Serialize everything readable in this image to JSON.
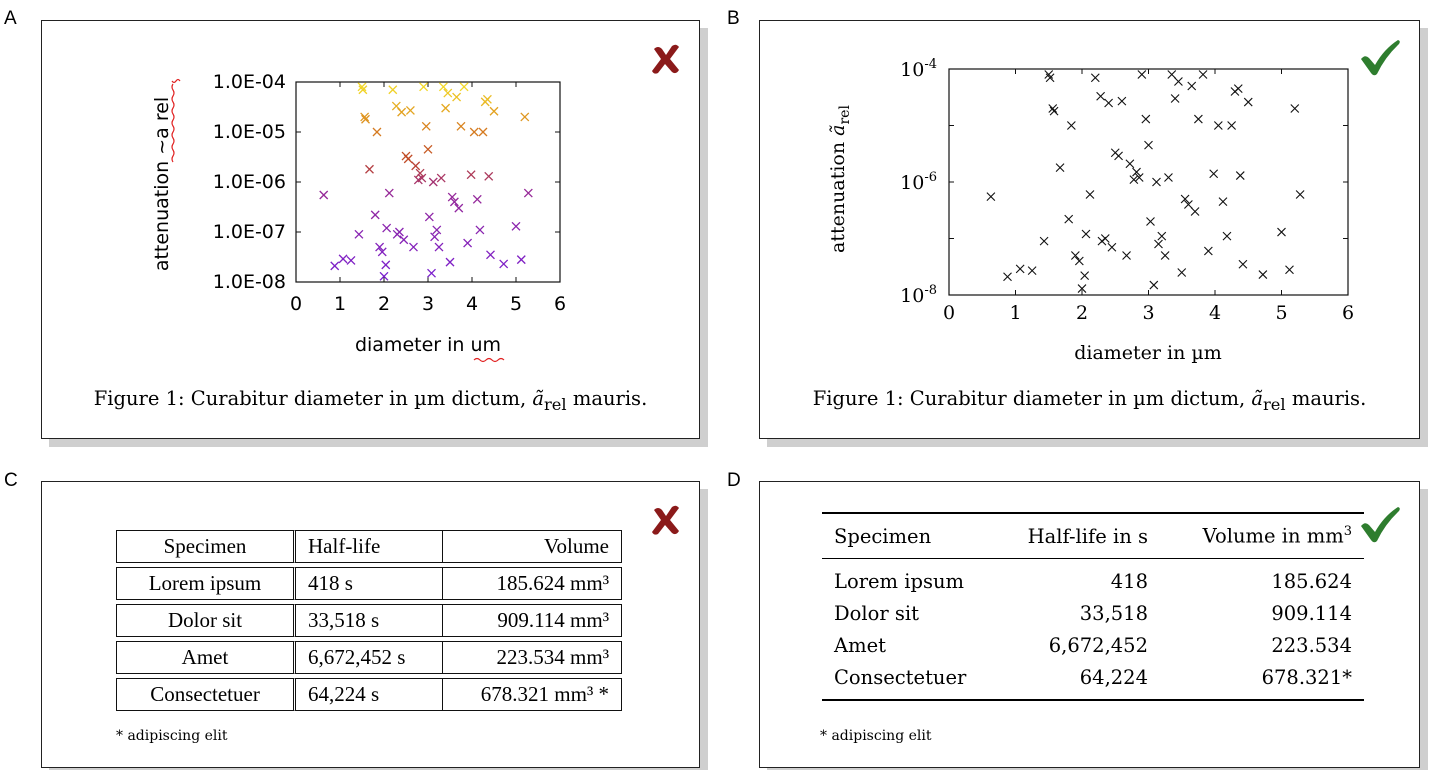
{
  "labels": {
    "a": "A",
    "b": "B",
    "c": "C",
    "d": "D"
  },
  "colors": {
    "bad_mark": "#8b1a1a",
    "good_mark": "#2e7d2e",
    "shadow": "#cfcfcf"
  },
  "icons": {
    "bad": "cross-mark-icon",
    "good": "check-mark-icon"
  },
  "panel_a": {
    "ylabel": "attenuation ~a rel",
    "xlabel": "diameter in um",
    "yticks": [
      "1.0E-04",
      "1.0E-05",
      "1.0E-06",
      "1.0E-07",
      "1.0E-08"
    ],
    "xticks": [
      "0",
      "1",
      "2",
      "3",
      "4",
      "5",
      "6"
    ],
    "caption": "Figure 1: Curabitur diameter in µm dictum, ã_rel mauris."
  },
  "panel_b": {
    "ylabel": "attenuation ã_rel",
    "xlabel": "diameter in µm",
    "yticks": [
      "10^-4",
      "10^-6",
      "10^-8"
    ],
    "xticks": [
      "0",
      "1",
      "2",
      "3",
      "4",
      "5",
      "6"
    ],
    "caption": "Figure 1: Curabitur diameter in µm dictum, ã_rel mauris."
  },
  "chart_data": [
    {
      "type": "scatter",
      "title": "",
      "xlabel": "diameter in um",
      "ylabel": "attenuation ~a rel",
      "xlim": [
        0,
        6
      ],
      "ylim": [
        1e-08,
        0.0001
      ],
      "yscale": "log",
      "grid": false,
      "color_by_y": "yellow (high) to purple (low)",
      "points": [
        [
          0.63,
          5.5e-07
        ],
        [
          0.88,
          2.1e-08
        ],
        [
          1.07,
          2.9e-08
        ],
        [
          1.25,
          2.7e-08
        ],
        [
          1.43,
          9e-08
        ],
        [
          1.5,
          8e-05
        ],
        [
          1.52,
          7e-05
        ],
        [
          1.56,
          2e-05
        ],
        [
          1.58,
          1.8e-05
        ],
        [
          1.67,
          1.8e-06
        ],
        [
          1.8,
          2.2e-07
        ],
        [
          1.84,
          1e-05
        ],
        [
          1.9,
          5e-08
        ],
        [
          1.96,
          4e-08
        ],
        [
          2.0,
          1.3e-08
        ],
        [
          2.04,
          2.2e-08
        ],
        [
          2.06,
          1.2e-07
        ],
        [
          2.12,
          6e-07
        ],
        [
          2.2,
          7e-05
        ],
        [
          2.28,
          3.3e-05
        ],
        [
          2.3,
          9e-08
        ],
        [
          2.35,
          1e-07
        ],
        [
          2.4,
          2.5e-05
        ],
        [
          2.45,
          7e-08
        ],
        [
          2.5,
          3.3e-06
        ],
        [
          2.55,
          2.9e-06
        ],
        [
          2.6,
          2.7e-05
        ],
        [
          2.67,
          5e-08
        ],
        [
          2.72,
          2.1e-06
        ],
        [
          2.78,
          1.1e-06
        ],
        [
          2.82,
          1.5e-06
        ],
        [
          2.86,
          1.2e-06
        ],
        [
          2.9,
          8e-05
        ],
        [
          2.96,
          1.3e-05
        ],
        [
          3.0,
          4.5e-06
        ],
        [
          3.03,
          2e-07
        ],
        [
          3.08,
          1.5e-08
        ],
        [
          3.12,
          1e-06
        ],
        [
          3.15,
          8e-08
        ],
        [
          3.2,
          1.1e-07
        ],
        [
          3.25,
          5e-08
        ],
        [
          3.3,
          1.2e-06
        ],
        [
          3.35,
          8e-05
        ],
        [
          3.4,
          3e-05
        ],
        [
          3.45,
          6e-05
        ],
        [
          3.5,
          2.5e-08
        ],
        [
          3.55,
          5e-07
        ],
        [
          3.6,
          4e-07
        ],
        [
          3.65,
          5e-05
        ],
        [
          3.7,
          3e-07
        ],
        [
          3.75,
          1.3e-05
        ],
        [
          3.82,
          8e-05
        ],
        [
          3.9,
          6e-08
        ],
        [
          3.98,
          1.4e-06
        ],
        [
          4.05,
          1e-05
        ],
        [
          4.12,
          4.5e-07
        ],
        [
          4.18,
          1.1e-07
        ],
        [
          4.25,
          1e-05
        ],
        [
          4.3,
          4e-05
        ],
        [
          4.35,
          4.5e-05
        ],
        [
          4.38,
          1.3e-06
        ],
        [
          4.42,
          3.5e-08
        ],
        [
          4.5,
          2.6e-05
        ],
        [
          4.72,
          2.3e-08
        ],
        [
          5.0,
          1.3e-07
        ],
        [
          5.12,
          2.8e-08
        ],
        [
          5.2,
          2e-05
        ],
        [
          5.28,
          6e-07
        ]
      ]
    },
    {
      "type": "scatter",
      "title": "",
      "xlabel": "diameter in µm",
      "ylabel": "attenuation ã_rel",
      "xlim": [
        0,
        6
      ],
      "ylim": [
        1e-08,
        0.0001
      ],
      "yscale": "log",
      "grid": false,
      "points": [
        [
          0.63,
          5.5e-07
        ],
        [
          0.88,
          2.1e-08
        ],
        [
          1.07,
          2.9e-08
        ],
        [
          1.25,
          2.7e-08
        ],
        [
          1.43,
          9e-08
        ],
        [
          1.5,
          8e-05
        ],
        [
          1.52,
          7e-05
        ],
        [
          1.56,
          2e-05
        ],
        [
          1.58,
          1.8e-05
        ],
        [
          1.67,
          1.8e-06
        ],
        [
          1.8,
          2.2e-07
        ],
        [
          1.84,
          1e-05
        ],
        [
          1.9,
          5e-08
        ],
        [
          1.96,
          4e-08
        ],
        [
          2.0,
          1.3e-08
        ],
        [
          2.04,
          2.2e-08
        ],
        [
          2.06,
          1.2e-07
        ],
        [
          2.12,
          6e-07
        ],
        [
          2.2,
          7e-05
        ],
        [
          2.28,
          3.3e-05
        ],
        [
          2.3,
          9e-08
        ],
        [
          2.35,
          1e-07
        ],
        [
          2.4,
          2.5e-05
        ],
        [
          2.45,
          7e-08
        ],
        [
          2.5,
          3.3e-06
        ],
        [
          2.55,
          2.9e-06
        ],
        [
          2.6,
          2.7e-05
        ],
        [
          2.67,
          5e-08
        ],
        [
          2.72,
          2.1e-06
        ],
        [
          2.78,
          1.1e-06
        ],
        [
          2.82,
          1.5e-06
        ],
        [
          2.86,
          1.2e-06
        ],
        [
          2.9,
          8e-05
        ],
        [
          2.96,
          1.3e-05
        ],
        [
          3.0,
          4.5e-06
        ],
        [
          3.03,
          2e-07
        ],
        [
          3.08,
          1.5e-08
        ],
        [
          3.12,
          1e-06
        ],
        [
          3.15,
          8e-08
        ],
        [
          3.2,
          1.1e-07
        ],
        [
          3.25,
          5e-08
        ],
        [
          3.3,
          1.2e-06
        ],
        [
          3.35,
          8e-05
        ],
        [
          3.4,
          3e-05
        ],
        [
          3.45,
          6e-05
        ],
        [
          3.5,
          2.5e-08
        ],
        [
          3.55,
          5e-07
        ],
        [
          3.6,
          4e-07
        ],
        [
          3.65,
          5e-05
        ],
        [
          3.7,
          3e-07
        ],
        [
          3.75,
          1.3e-05
        ],
        [
          3.82,
          8e-05
        ],
        [
          3.9,
          6e-08
        ],
        [
          3.98,
          1.4e-06
        ],
        [
          4.05,
          1e-05
        ],
        [
          4.12,
          4.5e-07
        ],
        [
          4.18,
          1.1e-07
        ],
        [
          4.25,
          1e-05
        ],
        [
          4.3,
          4e-05
        ],
        [
          4.35,
          4.5e-05
        ],
        [
          4.38,
          1.3e-06
        ],
        [
          4.42,
          3.5e-08
        ],
        [
          4.5,
          2.6e-05
        ],
        [
          4.72,
          2.3e-08
        ],
        [
          5.0,
          1.3e-07
        ],
        [
          5.12,
          2.8e-08
        ],
        [
          5.2,
          2e-05
        ],
        [
          5.28,
          6e-07
        ]
      ]
    },
    {
      "type": "table",
      "columns": [
        "Specimen",
        "Half-life",
        "Volume"
      ],
      "rows": [
        [
          "Lorem ipsum",
          "418 s",
          "185.624 mm³"
        ],
        [
          "Dolor sit",
          "33,518 s",
          "909.114 mm³"
        ],
        [
          "Amet",
          "6,672,452 s",
          "223.534 mm³"
        ],
        [
          "Consectetuer",
          "64,224 s",
          "678.321 mm³ *"
        ]
      ]
    },
    {
      "type": "table",
      "columns": [
        "Specimen",
        "Half-life in s",
        "Volume in mm³"
      ],
      "rows": [
        [
          "Lorem ipsum",
          "418",
          "185.624"
        ],
        [
          "Dolor sit",
          "33,518",
          "909.114"
        ],
        [
          "Amet",
          "6,672,452",
          "223.534"
        ],
        [
          "Consectetuer",
          "64,224",
          "678.321*"
        ]
      ]
    }
  ],
  "table_c": {
    "header": [
      "Specimen",
      "Half-life",
      "Volume"
    ],
    "rows": [
      [
        "Lorem ipsum",
        "418 s",
        "185.624 mm³"
      ],
      [
        "Dolor sit",
        "33,518 s",
        "909.114 mm³"
      ],
      [
        "Amet",
        "6,672,452 s",
        "223.534 mm³"
      ],
      [
        "Consectetuer",
        "64,224 s",
        "678.321 mm³ *"
      ]
    ],
    "note": "* adipiscing elit"
  },
  "table_d": {
    "header": [
      "Specimen",
      "Half-life in s",
      "Volume in mm³"
    ],
    "rows": [
      [
        "Lorem ipsum",
        "418",
        "185.624"
      ],
      [
        "Dolor sit",
        "33,518",
        "909.114"
      ],
      [
        "Amet",
        "6,672,452",
        "223.534"
      ],
      [
        "Consectetuer",
        "64,224",
        "678.321*"
      ]
    ],
    "note": "* adipiscing elit"
  }
}
